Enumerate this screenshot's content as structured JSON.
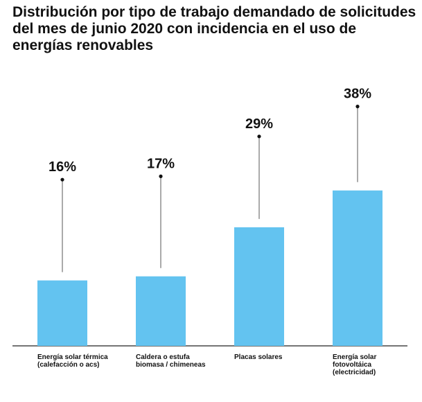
{
  "title": "Distribución por tipo de trabajo demandado de solicitudes del mes de junio 2020 con incidencia en el uso de energías renovables",
  "colors": {
    "bar": "#63c3f0",
    "stem": "#555555",
    "axis": "#222222",
    "text": "#111111"
  },
  "chart_data": {
    "type": "bar",
    "title": "Distribución por tipo de trabajo demandado de solicitudes del mes de junio 2020 con incidencia en el uso de energías renovables",
    "xlabel": "",
    "ylabel": "",
    "unit": "%",
    "categories": [
      "Energía solar térmica (calefacción o acs)",
      "Caldera o estufa biomasa / chimeneas",
      "Placas solares",
      "Energía solar fotovoltáica (electricidad)"
    ],
    "values": [
      16,
      17,
      29,
      38
    ],
    "data_labels": [
      "16%",
      "17%",
      "29%",
      "38%"
    ],
    "ylim": [
      0,
      45
    ],
    "grid": false,
    "legend": "none"
  }
}
